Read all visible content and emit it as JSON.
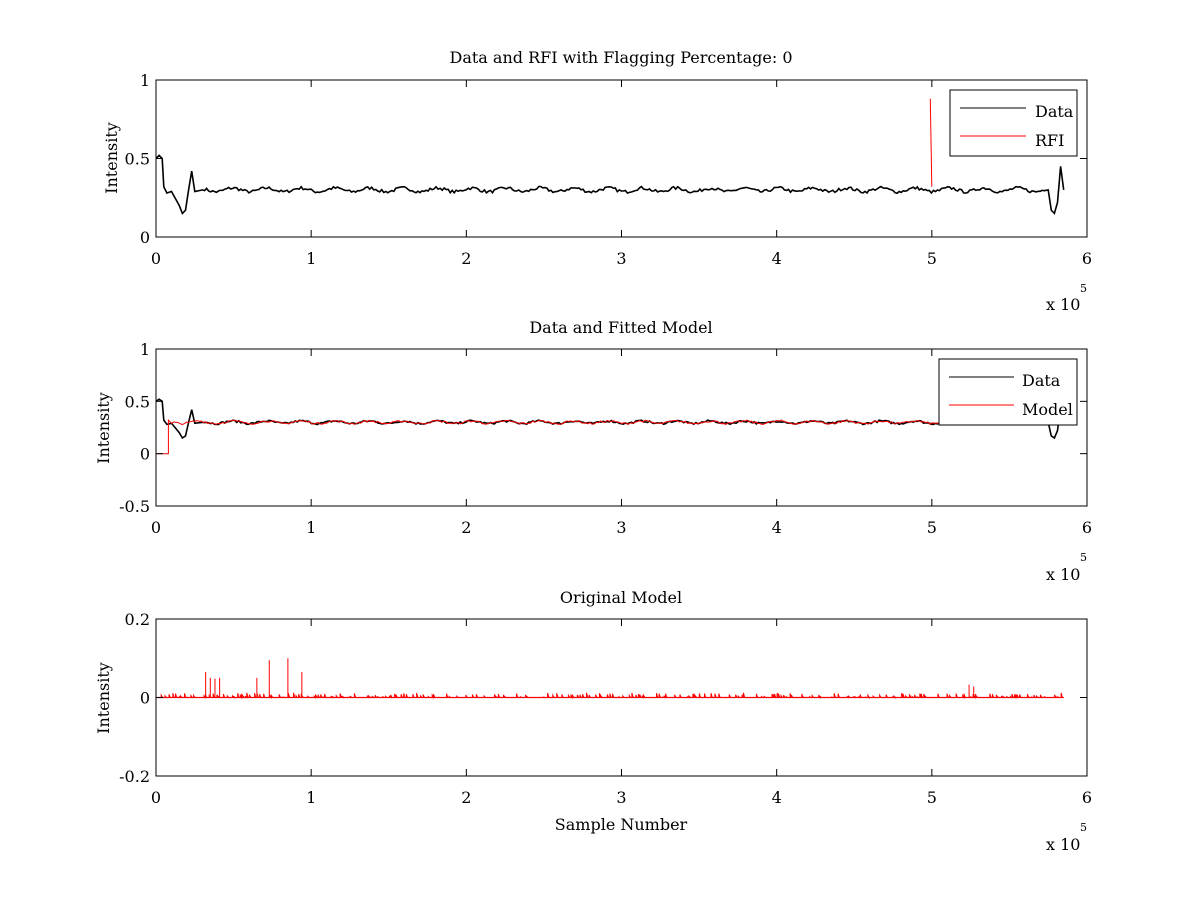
{
  "chart_data": [
    {
      "type": "line",
      "title": "Data and RFI with Flagging Percentage: 0",
      "xlabel": "",
      "ylabel": "Intensity",
      "xlim": [
        0,
        600000
      ],
      "ylim": [
        0,
        1
      ],
      "xticks": [
        "0",
        "1",
        "2",
        "3",
        "4",
        "5",
        "6"
      ],
      "yticks": [
        "0",
        "0.5",
        "1"
      ],
      "x_multiplier": {
        "base": "x 10",
        "exponent": "5"
      },
      "grid": false,
      "legend_placement": "top-right",
      "series": [
        {
          "name": "Data",
          "color": "#000000",
          "baseline": 0.3,
          "x": [
            0,
            2000,
            4000,
            5000,
            7000,
            10000,
            15000,
            17000,
            19000,
            21000,
            23000,
            25000,
            30000,
            575000,
            577000,
            579000,
            581000,
            583000,
            585000
          ],
          "y": [
            0.5,
            0.52,
            0.5,
            0.32,
            0.28,
            0.29,
            0.2,
            0.15,
            0.17,
            0.3,
            0.42,
            0.29,
            0.3,
            0.3,
            0.17,
            0.15,
            0.22,
            0.45,
            0.3
          ]
        },
        {
          "name": "RFI",
          "color": "#ff0000",
          "x": [
            499000,
            500000
          ],
          "y": [
            0.88,
            0.32
          ]
        }
      ]
    },
    {
      "type": "line",
      "title": "Data and Fitted Model",
      "xlabel": "",
      "ylabel": "Intensity",
      "xlim": [
        0,
        600000
      ],
      "ylim": [
        -0.5,
        1
      ],
      "xticks": [
        "0",
        "1",
        "2",
        "3",
        "4",
        "5",
        "6"
      ],
      "yticks": [
        "-0.5",
        "0",
        "0.5",
        "1"
      ],
      "x_multiplier": {
        "base": "x 10",
        "exponent": "5"
      },
      "grid": false,
      "legend_placement": "top-right",
      "series": [
        {
          "name": "Data",
          "color": "#000000",
          "baseline": 0.3,
          "x": [
            0,
            2000,
            4000,
            5000,
            7000,
            10000,
            15000,
            17000,
            19000,
            21000,
            23000,
            25000,
            30000,
            575000,
            577000,
            579000,
            581000,
            583000,
            585000
          ],
          "y": [
            0.5,
            0.52,
            0.5,
            0.32,
            0.28,
            0.29,
            0.2,
            0.15,
            0.17,
            0.3,
            0.42,
            0.29,
            0.3,
            0.3,
            0.17,
            0.15,
            0.22,
            0.45,
            0.3
          ]
        },
        {
          "name": "Model",
          "color": "#ff0000",
          "baseline": 0.3,
          "x": [
            0,
            8000,
            8000,
            10000,
            585000
          ],
          "y": [
            0.0,
            0.0,
            0.32,
            0.29,
            0.3
          ]
        }
      ]
    },
    {
      "type": "line",
      "title": "Original Model",
      "xlabel": "Sample Number",
      "ylabel": "Intensity",
      "xlim": [
        0,
        600000
      ],
      "ylim": [
        -0.2,
        0.2
      ],
      "xticks": [
        "0",
        "1",
        "2",
        "3",
        "4",
        "5",
        "6"
      ],
      "yticks": [
        "-0.2",
        "0",
        "0.2"
      ],
      "x_multiplier": {
        "base": "x 10",
        "exponent": "5"
      },
      "grid": false,
      "legend_placement": "none",
      "series": [
        {
          "color": "#ff0000",
          "x_range": [
            0,
            585000
          ],
          "baseline": 0,
          "spikes": [
            {
              "x": 32000,
              "y": 0.065
            },
            {
              "x": 35000,
              "y": 0.05
            },
            {
              "x": 38000,
              "y": 0.048
            },
            {
              "x": 41000,
              "y": 0.05
            },
            {
              "x": 65000,
              "y": 0.05
            },
            {
              "x": 73000,
              "y": 0.095
            },
            {
              "x": 85000,
              "y": 0.1
            },
            {
              "x": 94000,
              "y": 0.065
            },
            {
              "x": 524000,
              "y": 0.033
            },
            {
              "x": 527000,
              "y": 0.028
            }
          ]
        }
      ]
    }
  ]
}
